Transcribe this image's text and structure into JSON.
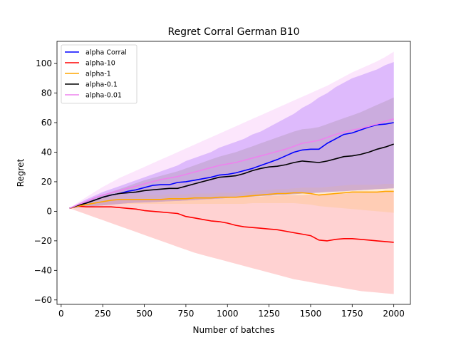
{
  "chart_data": {
    "type": "line",
    "title": "Regret Corral German B10",
    "xlabel": "Number of batches",
    "ylabel": "Regret",
    "xlim": [
      -25,
      2100
    ],
    "ylim": [
      -63,
      115
    ],
    "xticks": [
      0,
      250,
      500,
      750,
      1000,
      1250,
      1500,
      1750,
      2000
    ],
    "yticks": [
      -60,
      -40,
      -20,
      0,
      20,
      40,
      60,
      80,
      100
    ],
    "grid": false,
    "legend_position": "top-left",
    "x": [
      50,
      100,
      150,
      200,
      250,
      300,
      350,
      400,
      450,
      500,
      550,
      600,
      650,
      700,
      750,
      800,
      850,
      900,
      950,
      1000,
      1050,
      1100,
      1150,
      1200,
      1250,
      1300,
      1350,
      1400,
      1450,
      1500,
      1550,
      1600,
      1650,
      1700,
      1750,
      1800,
      1850,
      1900,
      1950,
      2000
    ],
    "series": [
      {
        "name": "alpha Corral",
        "color": "#0000ff",
        "band_color": "#7f3fff",
        "values": [
          2,
          4,
          5.5,
          7.5,
          9.5,
          11,
          12,
          13.5,
          14.5,
          16,
          17.5,
          18,
          18,
          19.5,
          20,
          21,
          22,
          23,
          24.5,
          25,
          26,
          27.5,
          29,
          31,
          33,
          35,
          37.5,
          40,
          41.5,
          42,
          42,
          46,
          49,
          52,
          53,
          55,
          57,
          58.5,
          59,
          60
        ],
        "lower": [
          2,
          2.5,
          3,
          3.5,
          4,
          4.5,
          5,
          5.5,
          5.8,
          6,
          6.2,
          6.5,
          6.8,
          7,
          7.3,
          7.6,
          8,
          8.3,
          8.6,
          9,
          9.3,
          9.6,
          10,
          10.3,
          10.6,
          11,
          11.3,
          11.6,
          12,
          12.3,
          12.6,
          13,
          13.3,
          13.6,
          14,
          14.3,
          14.6,
          15,
          15.3,
          15.6
        ],
        "upper": [
          2,
          5,
          8,
          10.5,
          13,
          15,
          17,
          19,
          21,
          23,
          25,
          27,
          29,
          31,
          34,
          36,
          38,
          40,
          43,
          45,
          47,
          49,
          52,
          54,
          57,
          60,
          63,
          66,
          70,
          73,
          77,
          80,
          84,
          87,
          90,
          92,
          94,
          96,
          99,
          101
        ]
      },
      {
        "name": "alpha-10",
        "color": "#ff0000",
        "band_color": "#ff7f7f",
        "values": [
          2,
          3.5,
          3,
          3,
          3,
          3,
          2.5,
          2,
          1.5,
          0.5,
          0,
          -0.5,
          -1,
          -1.5,
          -3.5,
          -4.5,
          -5.5,
          -6.5,
          -7,
          -8,
          -9.5,
          -10.5,
          -11,
          -11.5,
          -12,
          -12.5,
          -13.5,
          -14.5,
          -15.5,
          -16.5,
          -19.5,
          -20,
          -19,
          -18.5,
          -18.5,
          -19,
          -19.5,
          -20,
          -20.5,
          -21
        ],
        "lower": [
          2,
          0,
          -2,
          -4,
          -6,
          -8,
          -10,
          -12,
          -14,
          -16,
          -18,
          -20,
          -22,
          -24,
          -26,
          -28,
          -29.5,
          -31,
          -32.5,
          -34,
          -35.5,
          -37,
          -38.5,
          -40,
          -41.5,
          -43,
          -44.5,
          -46,
          -47,
          -48,
          -49,
          -50,
          -51,
          -52,
          -53,
          -54,
          -54.5,
          -55,
          -55.5,
          -56
        ],
        "upper": [
          2,
          4.5,
          5,
          6,
          6.5,
          7,
          7.5,
          7.5,
          8,
          8,
          8,
          8,
          8.5,
          8.5,
          8.5,
          9,
          9,
          9,
          9.5,
          9.5,
          9.5,
          10,
          10,
          10,
          10.5,
          10.5,
          11,
          11,
          11,
          11.5,
          11.5,
          12,
          12,
          12,
          12.5,
          12.5,
          13,
          13,
          13,
          13.5
        ]
      },
      {
        "name": "alpha-1",
        "color": "#ffa500",
        "band_color": "#ffc680",
        "values": [
          2,
          3.5,
          4.5,
          5.5,
          6.5,
          7.5,
          8,
          8,
          8,
          8,
          8,
          8,
          8.5,
          8.5,
          8.5,
          9,
          9,
          9,
          9.5,
          9.5,
          9.5,
          10,
          10.5,
          11,
          11.5,
          12,
          12,
          12.5,
          12.5,
          12,
          11,
          11.5,
          12,
          12.5,
          13,
          13,
          13,
          13,
          13.5,
          13.5
        ],
        "lower": [
          2,
          2.5,
          3,
          3.5,
          4,
          4.5,
          5,
          5,
          5,
          5,
          5,
          5,
          5,
          5,
          5,
          5,
          5,
          5,
          5,
          5,
          5,
          5,
          5.5,
          5.5,
          5.5,
          5.5,
          5.5,
          5.5,
          5,
          4.5,
          3.5,
          3,
          2.5,
          2,
          1.5,
          1,
          0.5,
          0,
          -0.5,
          -1
        ],
        "upper": [
          2,
          4.5,
          6,
          7.5,
          9,
          10,
          11,
          11,
          11,
          11,
          11,
          11,
          11.5,
          11.5,
          11.5,
          12,
          12,
          12,
          12.5,
          12.5,
          12.5,
          13,
          13.5,
          14,
          14.5,
          15,
          15,
          15.5,
          16,
          16,
          16,
          16.5,
          17,
          17.5,
          18,
          18,
          18,
          18,
          18.5,
          18.5
        ]
      },
      {
        "name": "alpha-0.1",
        "color": "#000000",
        "band_color": "#7f7f7f",
        "values": [
          2,
          4,
          5.5,
          7.5,
          9.5,
          11,
          12,
          12.5,
          13,
          14,
          14.5,
          15,
          15.5,
          15.5,
          17,
          18.5,
          20,
          21.5,
          23,
          23.5,
          24,
          25.5,
          27.5,
          29,
          30,
          30.5,
          31.5,
          33,
          34,
          33.5,
          33,
          34,
          35.5,
          37,
          37.5,
          38.5,
          40,
          42,
          43.5,
          45.5
        ],
        "lower": [
          2,
          2.5,
          3,
          3.5,
          4,
          4.5,
          5,
          5.5,
          5.8,
          6,
          6.2,
          6.5,
          6.8,
          7,
          7.3,
          7.6,
          8,
          8.3,
          8.6,
          9,
          9.3,
          9.6,
          10,
          10.3,
          10.6,
          11,
          11.3,
          11.6,
          12,
          12.3,
          12.6,
          13,
          13.3,
          13.6,
          14,
          14.3,
          14.6,
          15,
          15.3,
          15.6
        ],
        "upper": [
          2,
          4.5,
          6.5,
          9,
          11,
          13,
          15,
          17,
          19,
          21,
          22.5,
          24,
          25.5,
          27,
          29,
          31,
          33,
          35,
          37,
          38.5,
          40,
          42,
          44,
          46,
          48,
          50,
          52,
          54,
          55.5,
          56,
          57,
          59,
          61,
          63,
          65,
          67,
          69.5,
          72,
          74.5,
          77
        ]
      },
      {
        "name": "alpha-0.01",
        "color": "#ee82ee",
        "band_color": "#f7b8f7",
        "values": [
          2,
          4.5,
          6.5,
          9,
          11,
          12.5,
          14,
          15.5,
          17,
          18.5,
          20,
          21.5,
          22.5,
          23.5,
          25,
          26.5,
          28,
          29.5,
          31,
          32,
          33,
          34.5,
          36,
          37.5,
          39,
          40.5,
          42,
          44,
          46,
          47,
          48,
          50,
          52,
          53.5,
          55,
          56,
          57.5,
          59,
          61,
          62.5
        ],
        "lower": [
          2,
          2.5,
          3,
          3.5,
          4,
          4.5,
          5,
          5.5,
          5.8,
          6,
          6.2,
          6.5,
          6.8,
          7,
          7.3,
          7.6,
          8,
          8.3,
          8.6,
          9,
          9.3,
          9.6,
          10,
          10.3,
          10.6,
          11,
          11.3,
          11.6,
          12,
          12.3,
          12.6,
          13,
          13.3,
          13.6,
          14,
          14.3,
          14.6,
          15,
          15.3,
          15.6
        ],
        "upper": [
          2,
          6,
          9.5,
          13,
          16.5,
          19.5,
          22.5,
          25,
          27.5,
          30,
          32.5,
          35,
          37.5,
          40,
          42.5,
          45,
          47.5,
          50,
          52.5,
          55,
          57.5,
          60,
          62.5,
          65,
          67.5,
          70,
          72.5,
          75,
          77.5,
          80,
          82.5,
          85,
          88,
          91,
          94,
          96.5,
          99,
          101.5,
          104.5,
          108
        ]
      }
    ]
  }
}
